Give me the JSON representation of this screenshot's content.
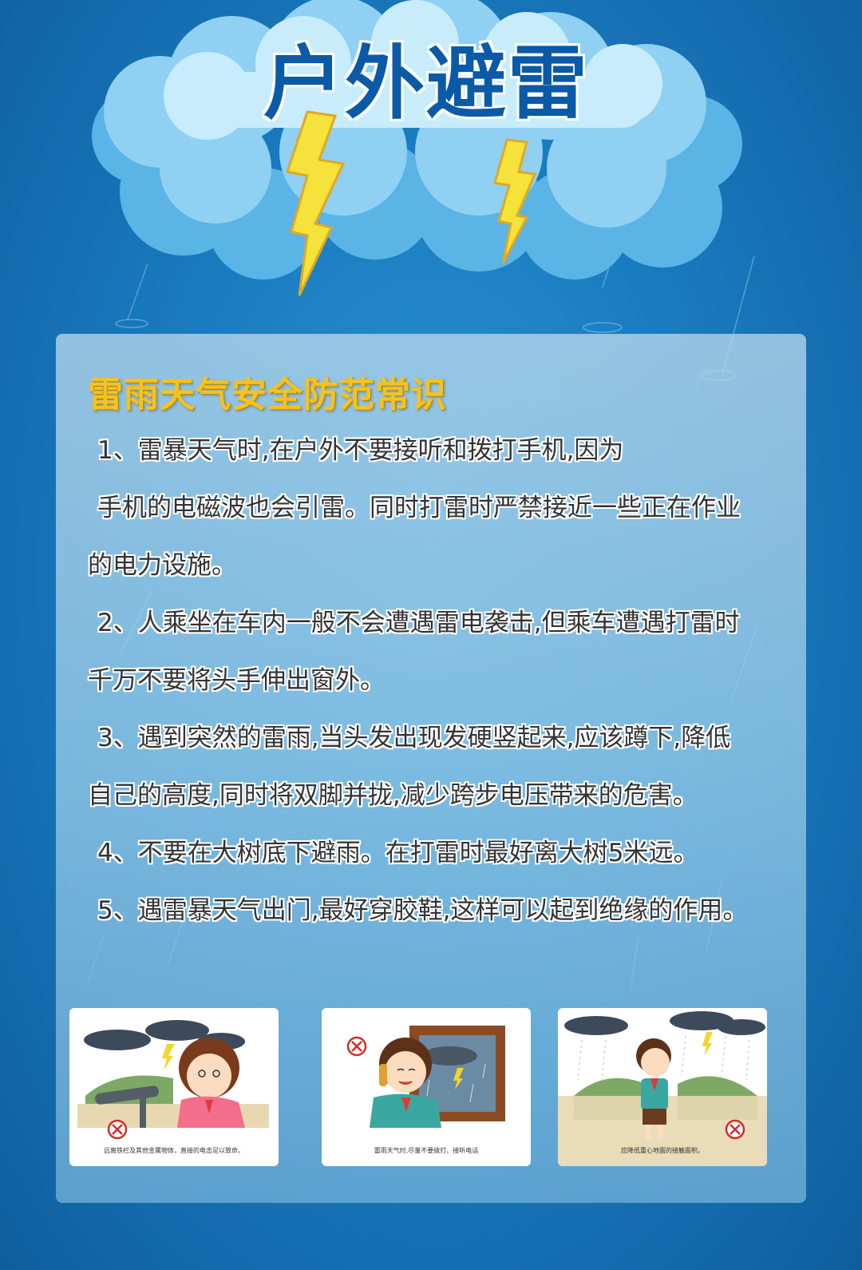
{
  "header": {
    "title": "户外避雷"
  },
  "panel": {
    "subtitle": "雷雨天气安全防范常识",
    "lines": [
      "1、雷暴天气时,在户外不要接听和拨打手机,因为",
      "手机的电磁波也会引雷。同时打雷时严禁接近一些正在作业",
      "的电力设施。",
      "2、人乘坐在车内一般不会遭遇雷电袭击,但乘车遭遇打雷时",
      "千万不要将头手伸出窗外。",
      "3、遇到突然的雷雨,当头发出现发硬竖起来,应该蹲下,降低",
      "自己的高度,同时将双脚并拢,减少跨步电压带来的危害。",
      "4、不要在大树底下避雨。在打雷时最好离大树5米远。",
      "5、遇雷暴天气出门,最好穿胶鞋,这样可以起到绝缘的作用。"
    ]
  },
  "cards": [
    {
      "caption": "远离铁栏及其他金属物体，直接的电击足以致命。",
      "icon": "telescope-illustration"
    },
    {
      "caption": "雷雨天气时,尽量不要拨打、接听电话",
      "icon": "phone-illustration"
    },
    {
      "caption": "应降低重心地面的接触面积。",
      "icon": "boy-in-rain-illustration"
    }
  ],
  "colors": {
    "background": "#1a7cc0",
    "title": "#0b5aa8",
    "subtitle": "#f6c21d",
    "lightning": "#f5e23a"
  }
}
